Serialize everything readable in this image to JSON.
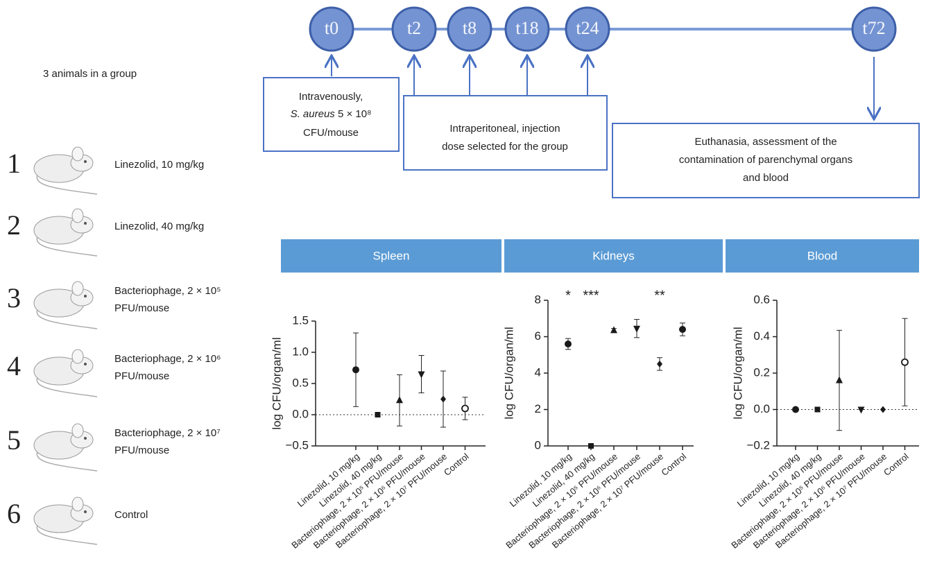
{
  "timeline": {
    "points": [
      "t0",
      "t2",
      "t8",
      "t18",
      "t24",
      "t72"
    ],
    "boxes": [
      {
        "lines": [
          "Intravenously,",
          "S. aureus",
          "5 × 10⁸",
          "CFU/mouse"
        ]
      },
      {
        "lines": [
          "Intraperitoneal, injection",
          "dose selected for the group"
        ]
      },
      {
        "lines": [
          "Euthanasia, assessment of the",
          "contamination of parenchymal organs",
          "and blood"
        ]
      }
    ]
  },
  "groups_note": "3 animals in a group",
  "groups": [
    {
      "number": "1",
      "lines": [
        "Linezolid, 10 mg/kg"
      ]
    },
    {
      "number": "2",
      "lines": [
        "Linezolid, 40 mg/kg"
      ]
    },
    {
      "number": "3",
      "lines": [
        "Bacteriophage, 2 × 10⁵",
        "PFU/mouse"
      ]
    },
    {
      "number": "4",
      "lines": [
        "Bacteriophage, 2 × 10⁶",
        "PFU/mouse"
      ]
    },
    {
      "number": "5",
      "lines": [
        "Bacteriophage, 2 × 10⁷",
        "PFU/mouse"
      ]
    },
    {
      "number": "6",
      "lines": [
        "Control"
      ]
    }
  ],
  "chart_data": [
    {
      "type": "errorbar",
      "title": "Spleen",
      "y_label": "log CFU/organ/ml",
      "color": "#1a1a1a",
      "header_color": "#5b9bd5",
      "categories": [
        "Linezolid, 10 mg/kg",
        "Linezolid, 40 mg/kg",
        "Bacteriophage, 2 × 10⁵ PFU/mouse",
        "Bacteriophage, 2 × 10⁶ PFU/mouse",
        "Bacteriophage, 2 × 10⁷ PFU/mouse",
        "Control"
      ],
      "markers": [
        "circle",
        "square",
        "triangle-up",
        "triangle-down",
        "diamond",
        "open-circle"
      ],
      "values": [
        0.72,
        0,
        0.23,
        0.65,
        0.25,
        0.1
      ],
      "errors": [
        0.59,
        0,
        0.41,
        0.3,
        0.45,
        0.18
      ],
      "annotations": [
        null,
        null,
        null,
        null,
        null,
        null
      ],
      "ylim": [
        -0.5,
        1.5
      ],
      "yticks": [
        {
          "value": -0.5,
          "label": "−0.5"
        },
        {
          "value": 0,
          "label": "0.0"
        },
        0.5,
        {
          "value": 1,
          "label": "1.0"
        },
        1.5
      ]
    },
    {
      "type": "errorbar",
      "title": "Kidneys",
      "y_label": "log CFU/organ/ml",
      "color": "#1a1a1a",
      "header_color": "#5b9bd5",
      "categories": [
        "Linezolid, 10 mg/kg",
        "Linezolid, 40 mg/kg",
        "Bacteriophage, 2 × 10⁵ PFU/mouse",
        "Bacteriophage, 2 × 10⁶ PFU/mouse",
        "Bacteriophage, 2 × 10⁷ PFU/mouse",
        "Control"
      ],
      "markers": [
        "circle",
        "square",
        "triangle-up",
        "triangle-down",
        "diamond",
        "circle"
      ],
      "values": [
        5.6,
        0,
        6.35,
        6.45,
        4.5,
        6.4
      ],
      "errors": [
        0.3,
        0.1,
        0.1,
        0.5,
        0.35,
        0.35
      ],
      "annotations": [
        "*",
        "***",
        null,
        null,
        "**",
        null
      ],
      "ylim": [
        0,
        8
      ],
      "yticks": [
        0,
        2,
        4,
        6,
        8
      ]
    },
    {
      "type": "errorbar",
      "title": "Blood",
      "y_label": "log CFU/organ/ml",
      "color": "#1a1a1a",
      "header_color": "#5b9bd5",
      "categories": [
        "Linezolid, 10 mg/kg",
        "Linezolid, 40 mg/kg",
        "Bacteriophage, 2 × 10⁵ PFU/mouse",
        "Bacteriophage, 2 × 10⁶ PFU/mouse",
        "Bacteriophage, 2 × 10⁷ PFU/mouse",
        "Control"
      ],
      "markers": [
        "circle",
        "square",
        "triangle-up",
        "triangle-down",
        "diamond",
        "open-circle"
      ],
      "values": [
        0,
        0,
        0.16,
        0,
        0,
        0.26
      ],
      "errors": [
        0,
        0,
        0.275,
        0,
        0,
        0.24
      ],
      "annotations": [
        null,
        null,
        null,
        null,
        null,
        null
      ],
      "ylim": [
        -0.2,
        0.6
      ],
      "yticks": [
        {
          "value": -0.2,
          "label": "−0.2"
        },
        {
          "value": 0,
          "label": "0.0"
        },
        0.2,
        0.4,
        0.6
      ]
    }
  ]
}
